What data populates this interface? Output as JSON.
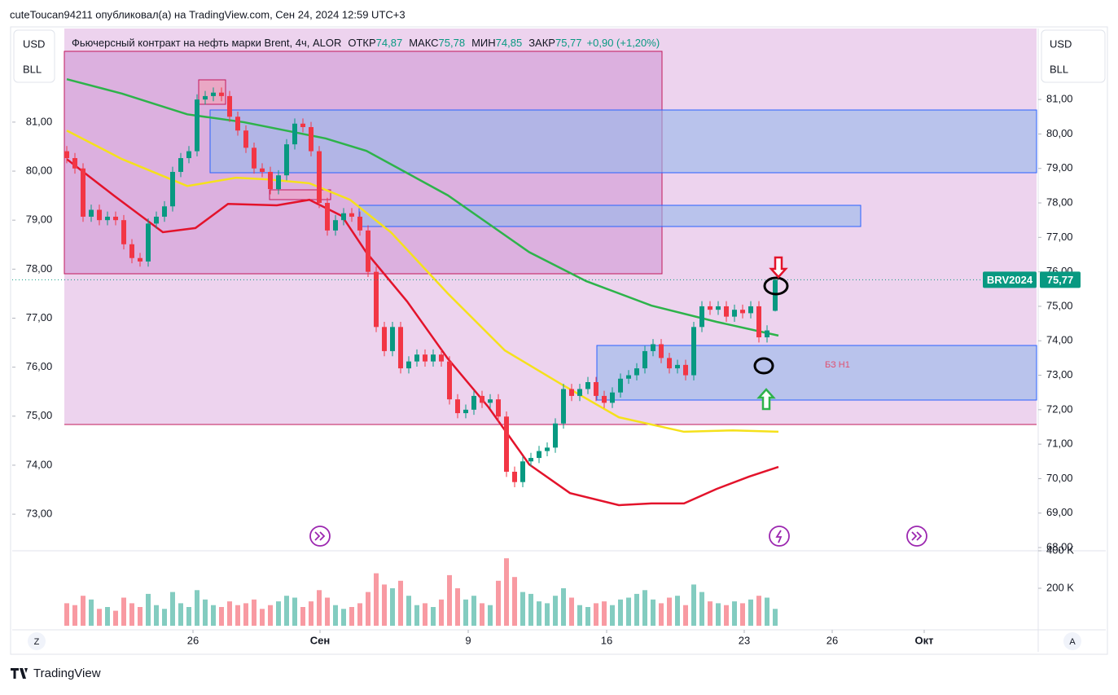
{
  "header": {
    "publisher": "cuteToucan94211 опубликовал(а) на TradingView.com, Сен 24, 2024 12:59 UTC+3",
    "title": "Фьючерсный контракт на нефть марки Brent, 4ч, ALOR",
    "fields": [
      {
        "label": "ОТКР",
        "value": "74,87"
      },
      {
        "label": "МАКС",
        "value": "75,78"
      },
      {
        "label": "МИН",
        "value": "74,85"
      },
      {
        "label": "ЗАКР",
        "value": "75,77"
      }
    ],
    "change": "+0,90 (+1,20%)",
    "currency": "USD",
    "unit": "BLL"
  },
  "chart_data": {
    "type": "candlestick",
    "up_color": "#089981",
    "down_color": "#f23645",
    "xlim": [
      -6.7,
      119.3
    ],
    "xticks": [
      {
        "value": 15.5,
        "label": "26"
      },
      {
        "value": 31.1,
        "label": "Сен"
      },
      {
        "value": 49.3,
        "label": "9"
      },
      {
        "value": 66.3,
        "label": "16"
      },
      {
        "value": 83.2,
        "label": "23"
      },
      {
        "value": 94,
        "label": "26"
      },
      {
        "value": 105.3,
        "label": "Окт"
      }
    ],
    "ylim": [
      67.93,
      83.06
    ],
    "yticks": [
      {
        "value": 81,
        "label": "81,00"
      },
      {
        "value": 80,
        "label": "80,00"
      },
      {
        "value": 79,
        "label": "79,00"
      },
      {
        "value": 78,
        "label": "78,00"
      },
      {
        "value": 77,
        "label": "77,00"
      },
      {
        "value": 76,
        "label": "76,00"
      },
      {
        "value": 75,
        "label": "75,00"
      },
      {
        "value": 74,
        "label": "74,00"
      },
      {
        "value": 73,
        "label": "73,00"
      },
      {
        "value": 72,
        "label": "72,00"
      },
      {
        "value": 71,
        "label": "71,00"
      },
      {
        "value": 70,
        "label": "70,00"
      },
      {
        "value": 69,
        "label": "69,00"
      },
      {
        "value": 68,
        "label": "68,00"
      }
    ],
    "y2lim": [
      72.27,
      82.91
    ],
    "y2ticks": [
      {
        "value": 81,
        "label": "81,00"
      },
      {
        "value": 80,
        "label": "80,00"
      },
      {
        "value": 79,
        "label": "79,00"
      },
      {
        "value": 78,
        "label": "78,00"
      },
      {
        "value": 77,
        "label": "77,00"
      },
      {
        "value": 76,
        "label": "76,00"
      },
      {
        "value": 75,
        "label": "75,00"
      },
      {
        "value": 74,
        "label": "74,00"
      },
      {
        "value": 73,
        "label": "73,00"
      }
    ],
    "candles": [
      [
        79.5,
        79.65,
        79.15,
        79.3
      ],
      [
        79.3,
        79.45,
        78.85,
        79.0
      ],
      [
        79.0,
        79.15,
        77.45,
        77.6
      ],
      [
        77.6,
        77.95,
        77.45,
        77.8
      ],
      [
        77.8,
        77.95,
        77.35,
        77.5
      ],
      [
        77.5,
        77.75,
        77.35,
        77.6
      ],
      [
        77.6,
        77.75,
        77.35,
        77.5
      ],
      [
        77.5,
        77.65,
        76.65,
        76.8
      ],
      [
        76.8,
        76.95,
        76.25,
        76.4
      ],
      [
        76.4,
        76.55,
        76.15,
        76.3
      ],
      [
        76.3,
        77.55,
        76.15,
        77.4
      ],
      [
        77.4,
        77.75,
        77.25,
        77.6
      ],
      [
        77.6,
        78.05,
        77.45,
        77.9
      ],
      [
        77.9,
        79.05,
        77.75,
        78.9
      ],
      [
        78.9,
        79.45,
        78.75,
        79.3
      ],
      [
        79.3,
        79.65,
        79.15,
        79.5
      ],
      [
        79.5,
        81.15,
        79.35,
        81.0
      ],
      [
        81.0,
        81.25,
        80.85,
        81.1
      ],
      [
        81.1,
        81.35,
        80.95,
        81.2
      ],
      [
        81.2,
        81.35,
        80.95,
        81.1
      ],
      [
        81.1,
        81.25,
        80.35,
        80.5
      ],
      [
        80.5,
        80.65,
        79.95,
        80.1
      ],
      [
        80.1,
        80.25,
        79.45,
        79.6
      ],
      [
        79.6,
        79.75,
        78.85,
        79.0
      ],
      [
        79.0,
        79.15,
        78.75,
        78.9
      ],
      [
        78.9,
        79.05,
        78.25,
        78.4
      ],
      [
        78.4,
        78.95,
        78.25,
        78.8
      ],
      [
        78.8,
        79.85,
        78.65,
        79.7
      ],
      [
        79.7,
        80.45,
        79.55,
        80.3
      ],
      [
        80.3,
        80.45,
        80.05,
        80.2
      ],
      [
        80.2,
        80.35,
        79.35,
        79.5
      ],
      [
        79.5,
        79.65,
        77.85,
        78.0
      ],
      [
        78.0,
        78.15,
        77.05,
        77.2
      ],
      [
        77.2,
        77.65,
        77.05,
        77.5
      ],
      [
        77.5,
        77.85,
        77.35,
        77.7
      ],
      [
        77.7,
        77.85,
        77.45,
        77.6
      ],
      [
        77.6,
        77.75,
        77.05,
        77.2
      ],
      [
        77.2,
        77.35,
        75.85,
        76.0
      ],
      [
        76.0,
        76.15,
        74.25,
        74.4
      ],
      [
        74.4,
        74.55,
        73.55,
        73.7
      ],
      [
        73.7,
        74.55,
        73.55,
        74.4
      ],
      [
        74.4,
        74.55,
        73.05,
        73.2
      ],
      [
        73.2,
        73.55,
        73.05,
        73.4
      ],
      [
        73.4,
        73.75,
        73.25,
        73.6
      ],
      [
        73.6,
        73.75,
        73.25,
        73.4
      ],
      [
        73.4,
        73.75,
        73.25,
        73.6
      ],
      [
        73.6,
        73.75,
        73.25,
        73.4
      ],
      [
        73.4,
        73.55,
        72.15,
        72.3
      ],
      [
        72.3,
        72.45,
        71.75,
        71.9
      ],
      [
        71.9,
        72.15,
        71.75,
        72.0
      ],
      [
        72.0,
        72.55,
        71.85,
        72.4
      ],
      [
        72.4,
        72.55,
        72.05,
        72.2
      ],
      [
        72.2,
        72.45,
        72.05,
        72.3
      ],
      [
        72.3,
        72.45,
        71.65,
        71.8
      ],
      [
        71.8,
        71.95,
        70.05,
        70.2
      ],
      [
        70.2,
        70.35,
        69.75,
        69.9
      ],
      [
        69.9,
        70.65,
        69.75,
        70.5
      ],
      [
        70.5,
        70.75,
        70.35,
        70.6
      ],
      [
        70.6,
        70.95,
        70.45,
        70.8
      ],
      [
        70.8,
        71.05,
        70.65,
        70.9
      ],
      [
        70.9,
        71.75,
        70.75,
        71.6
      ],
      [
        71.6,
        72.75,
        71.45,
        72.6
      ],
      [
        72.6,
        72.75,
        72.25,
        72.4
      ],
      [
        72.4,
        72.75,
        72.25,
        72.6
      ],
      [
        72.6,
        72.95,
        72.45,
        72.8
      ],
      [
        72.8,
        72.95,
        72.25,
        72.4
      ],
      [
        72.4,
        72.55,
        72.05,
        72.2
      ],
      [
        72.2,
        72.65,
        72.05,
        72.5
      ],
      [
        72.5,
        73.05,
        72.35,
        72.9
      ],
      [
        72.9,
        73.15,
        72.75,
        73.0
      ],
      [
        73.0,
        73.35,
        72.85,
        73.2
      ],
      [
        73.2,
        73.85,
        73.05,
        73.7
      ],
      [
        73.7,
        74.05,
        73.55,
        73.9
      ],
      [
        73.9,
        74.05,
        73.35,
        73.5
      ],
      [
        73.5,
        73.65,
        73.05,
        73.2
      ],
      [
        73.2,
        73.45,
        73.05,
        73.3
      ],
      [
        73.3,
        73.45,
        72.85,
        73.0
      ],
      [
        73.0,
        74.55,
        72.85,
        74.4
      ],
      [
        74.4,
        75.15,
        74.25,
        75.0
      ],
      [
        75.0,
        75.15,
        74.75,
        74.9
      ],
      [
        74.9,
        75.15,
        74.75,
        75.0
      ],
      [
        75.0,
        75.15,
        74.55,
        74.7
      ],
      [
        74.7,
        75.05,
        74.55,
        74.9
      ],
      [
        74.9,
        75.05,
        74.65,
        74.8
      ],
      [
        74.8,
        75.15,
        74.65,
        75.0
      ],
      [
        75.0,
        75.15,
        73.95,
        74.1
      ],
      [
        74.1,
        74.45,
        73.95,
        74.3
      ],
      [
        74.87,
        75.78,
        74.85,
        75.77
      ]
    ],
    "volume": [
      120000,
      110000,
      160000,
      140000,
      90000,
      100000,
      80000,
      150000,
      120000,
      100000,
      170000,
      110000,
      90000,
      180000,
      120000,
      100000,
      190000,
      140000,
      110000,
      100000,
      130000,
      110000,
      120000,
      140000,
      90000,
      110000,
      130000,
      160000,
      150000,
      100000,
      130000,
      190000,
      150000,
      110000,
      90000,
      100000,
      120000,
      180000,
      280000,
      220000,
      200000,
      240000,
      160000,
      110000,
      120000,
      100000,
      140000,
      270000,
      200000,
      140000,
      160000,
      120000,
      110000,
      240000,
      360000,
      260000,
      180000,
      170000,
      130000,
      120000,
      160000,
      200000,
      150000,
      110000,
      100000,
      120000,
      130000,
      110000,
      140000,
      150000,
      170000,
      190000,
      140000,
      120000,
      150000,
      160000,
      110000,
      220000,
      180000,
      130000,
      120000,
      110000,
      130000,
      120000,
      140000,
      160000,
      150000,
      90000
    ],
    "vlim": [
      0,
      400000
    ],
    "vticks": [
      {
        "value": 400000,
        "label": "400 K"
      },
      {
        "value": 200000,
        "label": "200 K"
      }
    ],
    "indicators": [
      {
        "color": "#2db34a",
        "x": [
          0,
          6.8,
          14.8,
          21.8,
          31.8,
          36.8,
          46.8,
          56.8,
          63.8,
          71.8,
          79.8,
          87.4
        ],
        "values": [
          81.59,
          81.17,
          80.57,
          80.34,
          79.87,
          79.51,
          78.22,
          76.57,
          75.73,
          75.02,
          74.55,
          74.15
        ]
      },
      {
        "color": "#f5e11b",
        "x": [
          0,
          6.8,
          14.8,
          20.8,
          24.8,
          29.8,
          34.8,
          39.8,
          46.8,
          53.8,
          60.8,
          67.8,
          75.8,
          81.8,
          87.4
        ],
        "values": [
          80.1,
          79.27,
          78.49,
          78.73,
          78.68,
          78.57,
          78.09,
          77.15,
          75.37,
          73.72,
          72.73,
          71.78,
          71.36,
          71.4,
          71.36
        ]
      },
      {
        "color": "#e3132b",
        "x": [
          0,
          5.8,
          11.8,
          15.8,
          19.8,
          25.8,
          29.8,
          33.8,
          36.8,
          41.8,
          46.8,
          51.8,
          56.8,
          61.8,
          67.8,
          71.8,
          75.8,
          79.8,
          83.8,
          87.4
        ],
        "values": [
          79.27,
          78.21,
          77.15,
          77.27,
          77.97,
          77.93,
          78.09,
          77.62,
          76.56,
          75.14,
          73.48,
          72.07,
          70.41,
          69.58,
          69.23,
          69.28,
          69.28,
          69.7,
          70.06,
          70.34
        ]
      }
    ],
    "price_tag": {
      "symbol": "BRV2024",
      "value": 75.77,
      "label": "75,77"
    },
    "annotation": "БЗ Н1"
  },
  "footer": {
    "logo": "TradingView",
    "left_button": "Z",
    "right_button": "A"
  }
}
